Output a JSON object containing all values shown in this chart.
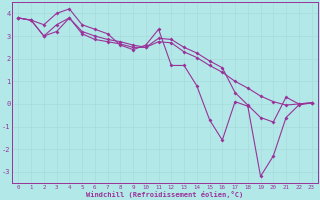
{
  "xlabel": "Windchill (Refroidissement éolien,°C)",
  "background_color": "#b2e8e8",
  "line_color": "#993399",
  "grid_color": "#aadddd",
  "xlim": [
    -0.5,
    23.5
  ],
  "ylim": [
    -3.5,
    4.5
  ],
  "yticks": [
    -3,
    -2,
    -1,
    0,
    1,
    2,
    3,
    4
  ],
  "xticks": [
    0,
    1,
    2,
    3,
    4,
    5,
    6,
    7,
    8,
    9,
    10,
    11,
    12,
    13,
    14,
    15,
    16,
    17,
    18,
    19,
    20,
    21,
    22,
    23
  ],
  "series1_x": [
    0,
    1,
    2,
    3,
    4,
    5,
    6,
    7,
    8,
    9,
    10,
    11,
    12,
    13,
    14,
    15,
    16,
    17,
    18,
    19,
    20,
    21,
    22,
    23
  ],
  "series1_y": [
    3.8,
    3.7,
    3.5,
    4.0,
    4.2,
    3.5,
    3.3,
    3.1,
    2.6,
    2.4,
    2.6,
    3.3,
    1.7,
    1.7,
    0.8,
    -0.7,
    -1.6,
    0.1,
    -0.1,
    -3.2,
    -2.3,
    -0.6,
    -0.05,
    0.05
  ],
  "series2_x": [
    0,
    1,
    2,
    3,
    4,
    5,
    6,
    7,
    8,
    9,
    10,
    11,
    12,
    13,
    14,
    15,
    16,
    17,
    18,
    19,
    20,
    21,
    22,
    23
  ],
  "series2_y": [
    3.8,
    3.7,
    3.0,
    3.5,
    3.8,
    3.2,
    3.0,
    2.85,
    2.75,
    2.6,
    2.5,
    2.9,
    2.85,
    2.5,
    2.25,
    1.9,
    1.6,
    0.5,
    -0.05,
    -0.6,
    -0.8,
    0.3,
    0.0,
    0.05
  ],
  "series3_x": [
    0,
    1,
    2,
    3,
    4,
    5,
    6,
    7,
    8,
    9,
    10,
    11,
    12,
    13,
    14,
    15,
    16,
    17,
    18,
    19,
    20,
    21,
    22,
    23
  ],
  "series3_y": [
    3.8,
    3.7,
    3.0,
    3.2,
    3.8,
    3.1,
    2.85,
    2.75,
    2.65,
    2.5,
    2.5,
    2.75,
    2.7,
    2.3,
    2.05,
    1.7,
    1.4,
    1.0,
    0.7,
    0.35,
    0.1,
    -0.05,
    0.0,
    0.05
  ]
}
